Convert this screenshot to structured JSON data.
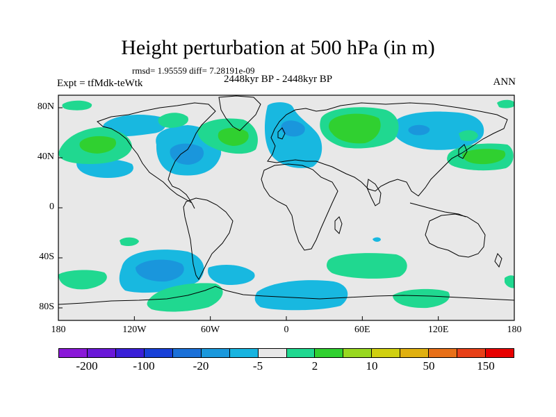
{
  "plot": {
    "title": "Height perturbation at 500 hPa (in m)",
    "stats": "rmsd= 1.95559 diff= 7.28191e-09",
    "experiment": "Expt = tfMdk-teWtk",
    "period": "2448kyr BP - 2448kyr BP",
    "season": "ANN"
  },
  "axes": {
    "y_ticks": [
      {
        "label": "80N",
        "value": 80
      },
      {
        "label": "40N",
        "value": 40
      },
      {
        "label": "0",
        "value": 0
      },
      {
        "label": "40S",
        "value": -40
      },
      {
        "label": "80S",
        "value": -80
      }
    ],
    "x_ticks": [
      {
        "label": "180",
        "value": -180
      },
      {
        "label": "120W",
        "value": -120
      },
      {
        "label": "60W",
        "value": -60
      },
      {
        "label": "0",
        "value": 0
      },
      {
        "label": "60E",
        "value": 60
      },
      {
        "label": "120E",
        "value": 120
      },
      {
        "label": "180",
        "value": 180
      }
    ],
    "lat_range": [
      -90,
      90
    ],
    "lon_range": [
      -180,
      180
    ]
  },
  "colorbar": {
    "colors": [
      "#8a18d8",
      "#6a18d8",
      "#3a20d8",
      "#1840d8",
      "#1a70d8",
      "#1a98dc",
      "#18b4e0",
      "#e8e8e8",
      "#20d890",
      "#30d030",
      "#98d820",
      "#d0d010",
      "#e0b010",
      "#e87018",
      "#e84018",
      "#e80000"
    ],
    "labels": [
      {
        "text": "-200",
        "index": 1
      },
      {
        "text": "-100",
        "index": 3
      },
      {
        "text": "-20",
        "index": 5
      },
      {
        "text": "-5",
        "index": 7
      },
      {
        "text": "2",
        "index": 9
      },
      {
        "text": "10",
        "index": 11
      },
      {
        "text": "50",
        "index": 13
      },
      {
        "text": "150",
        "index": 15
      }
    ]
  }
}
